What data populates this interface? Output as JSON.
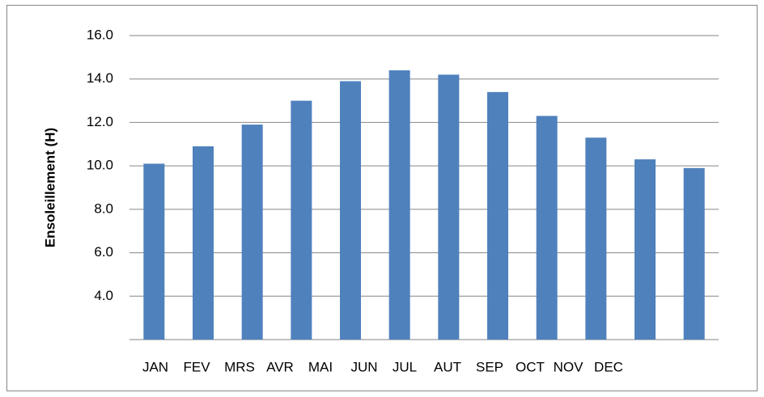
{
  "chart_data": {
    "type": "bar",
    "y_label": "Ensoleillement (H)",
    "categories": [
      "JAN",
      "FEV",
      "MRS",
      "AVR",
      "MAI",
      "JUN",
      "JUL",
      "AUT",
      "SEP",
      "OCT",
      "NOV",
      "DEC"
    ],
    "values": [
      10.1,
      10.9,
      11.9,
      13.0,
      13.9,
      14.4,
      14.2,
      13.4,
      12.3,
      11.3,
      10.3,
      9.9
    ],
    "color": "#4f81bd",
    "ylim": [
      2,
      16
    ],
    "yticks": [
      {
        "value": 4,
        "label": "4.0"
      },
      {
        "value": 6,
        "label": "6.0"
      },
      {
        "value": 8,
        "label": "8.0"
      },
      {
        "value": 10,
        "label": "10.0"
      },
      {
        "value": 12,
        "label": "12.0"
      },
      {
        "value": 14,
        "label": "14.0"
      },
      {
        "value": 16,
        "label": "16.0"
      }
    ],
    "grid": true
  }
}
